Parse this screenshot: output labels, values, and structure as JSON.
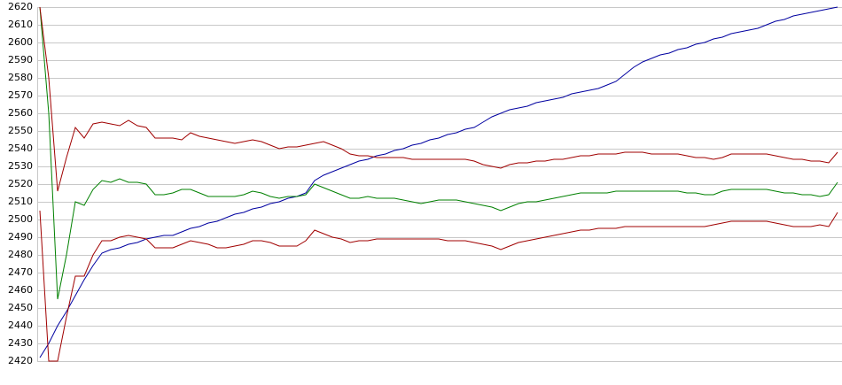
{
  "chart_data": {
    "type": "line",
    "categories": [
      null,
      null,
      null,
      null,
      null,
      null,
      null,
      null,
      null,
      null,
      null,
      null,
      null,
      null,
      null,
      null,
      null,
      null,
      null,
      null,
      null,
      null,
      null,
      null,
      null,
      null,
      null,
      null,
      null,
      null,
      null,
      null,
      null,
      null,
      null,
      null,
      null,
      null,
      null,
      null,
      null,
      null,
      null,
      null,
      null,
      null,
      null,
      null,
      null,
      null,
      null,
      null,
      null,
      null,
      null,
      null,
      null,
      null,
      null,
      null,
      null,
      null,
      null,
      null,
      null,
      null,
      null,
      null,
      null,
      null,
      null,
      null,
      null,
      null,
      null,
      null,
      null,
      null,
      null,
      null,
      null,
      null,
      null,
      null,
      null,
      null,
      null,
      null,
      null,
      null,
      null
    ],
    "series": [
      {
        "color": "#0000a0",
        "values": [
          2422,
          2430,
          2440,
          2448,
          2457,
          2466,
          2474,
          2481,
          2483,
          2484,
          2486,
          2487,
          2489,
          2490,
          2491,
          2491,
          2493,
          2495,
          2496,
          2498,
          2499,
          2501,
          2503,
          2504,
          2506,
          2507,
          2509,
          2510,
          2512,
          2513,
          2515,
          2522,
          2525,
          2527,
          2529,
          2531,
          2533,
          2534,
          2536,
          2537,
          2539,
          2540,
          2542,
          2543,
          2545,
          2546,
          2548,
          2549,
          2551,
          2552,
          2555,
          2558,
          2560,
          2562,
          2563,
          2564,
          2566,
          2567,
          2568,
          2569,
          2571,
          2572,
          2573,
          2574,
          2576,
          2578,
          2582,
          2586,
          2589,
          2591,
          2593,
          2594,
          2596,
          2597,
          2599,
          2600,
          2602,
          2603,
          2605,
          2606,
          2607,
          2608,
          2610,
          2612,
          2613,
          2615,
          2616,
          2617,
          2618,
          2619,
          2620
        ]
      },
      {
        "color": "#008000",
        "values": [
          2620,
          2560,
          2455,
          2480,
          2510,
          2508,
          2517,
          2522,
          2521,
          2523,
          2521,
          2521,
          2520,
          2514,
          2514,
          2515,
          2517,
          2517,
          2515,
          2513,
          2513,
          2513,
          2513,
          2514,
          2516,
          2515,
          2513,
          2512,
          2513,
          2513,
          2514,
          2520,
          2518,
          2516,
          2514,
          2512,
          2512,
          2513,
          2512,
          2512,
          2512,
          2511,
          2510,
          2509,
          2510,
          2511,
          2511,
          2511,
          2510,
          2509,
          2508,
          2507,
          2505,
          2507,
          2509,
          2510,
          2510,
          2511,
          2512,
          2513,
          2514,
          2515,
          2515,
          2515,
          2515,
          2516,
          2516,
          2516,
          2516,
          2516,
          2516,
          2516,
          2516,
          2515,
          2515,
          2514,
          2514,
          2516,
          2517,
          2517,
          2517,
          2517,
          2517,
          2516,
          2515,
          2515,
          2514,
          2514,
          2513,
          2514,
          2521
        ]
      },
      {
        "color": "#a00000",
        "values": [
          2620,
          2580,
          2516,
          2535,
          2552,
          2546,
          2554,
          2555,
          2554,
          2553,
          2556,
          2553,
          2552,
          2546,
          2546,
          2546,
          2545,
          2549,
          2547,
          2546,
          2545,
          2544,
          2543,
          2544,
          2545,
          2544,
          2542,
          2540,
          2541,
          2541,
          2542,
          2543,
          2544,
          2542,
          2540,
          2537,
          2536,
          2536,
          2535,
          2535,
          2535,
          2535,
          2534,
          2534,
          2534,
          2534,
          2534,
          2534,
          2534,
          2533,
          2531,
          2530,
          2529,
          2531,
          2532,
          2532,
          2533,
          2533,
          2534,
          2534,
          2535,
          2536,
          2536,
          2537,
          2537,
          2537,
          2538,
          2538,
          2538,
          2537,
          2537,
          2537,
          2537,
          2536,
          2535,
          2535,
          2534,
          2535,
          2537,
          2537,
          2537,
          2537,
          2537,
          2536,
          2535,
          2534,
          2534,
          2533,
          2533,
          2532,
          2538
        ]
      },
      {
        "color": "#a00000",
        "values": [
          2505,
          2420,
          2420,
          2445,
          2468,
          2468,
          2480,
          2488,
          2488,
          2490,
          2491,
          2490,
          2489,
          2484,
          2484,
          2484,
          2486,
          2488,
          2487,
          2486,
          2484,
          2484,
          2485,
          2486,
          2488,
          2488,
          2487,
          2485,
          2485,
          2485,
          2488,
          2494,
          2492,
          2490,
          2489,
          2487,
          2488,
          2488,
          2489,
          2489,
          2489,
          2489,
          2489,
          2489,
          2489,
          2489,
          2488,
          2488,
          2488,
          2487,
          2486,
          2485,
          2483,
          2485,
          2487,
          2488,
          2489,
          2490,
          2491,
          2492,
          2493,
          2494,
          2494,
          2495,
          2495,
          2495,
          2496,
          2496,
          2496,
          2496,
          2496,
          2496,
          2496,
          2496,
          2496,
          2496,
          2497,
          2498,
          2499,
          2499,
          2499,
          2499,
          2499,
          2498,
          2497,
          2496,
          2496,
          2496,
          2497,
          2496,
          2504
        ]
      }
    ],
    "ylim": [
      2420,
      2620
    ],
    "yticks": [
      2420,
      2430,
      2440,
      2450,
      2460,
      2470,
      2480,
      2490,
      2500,
      2510,
      2520,
      2530,
      2540,
      2550,
      2560,
      2570,
      2580,
      2590,
      2600,
      2610,
      2620
    ],
    "grid": true
  }
}
